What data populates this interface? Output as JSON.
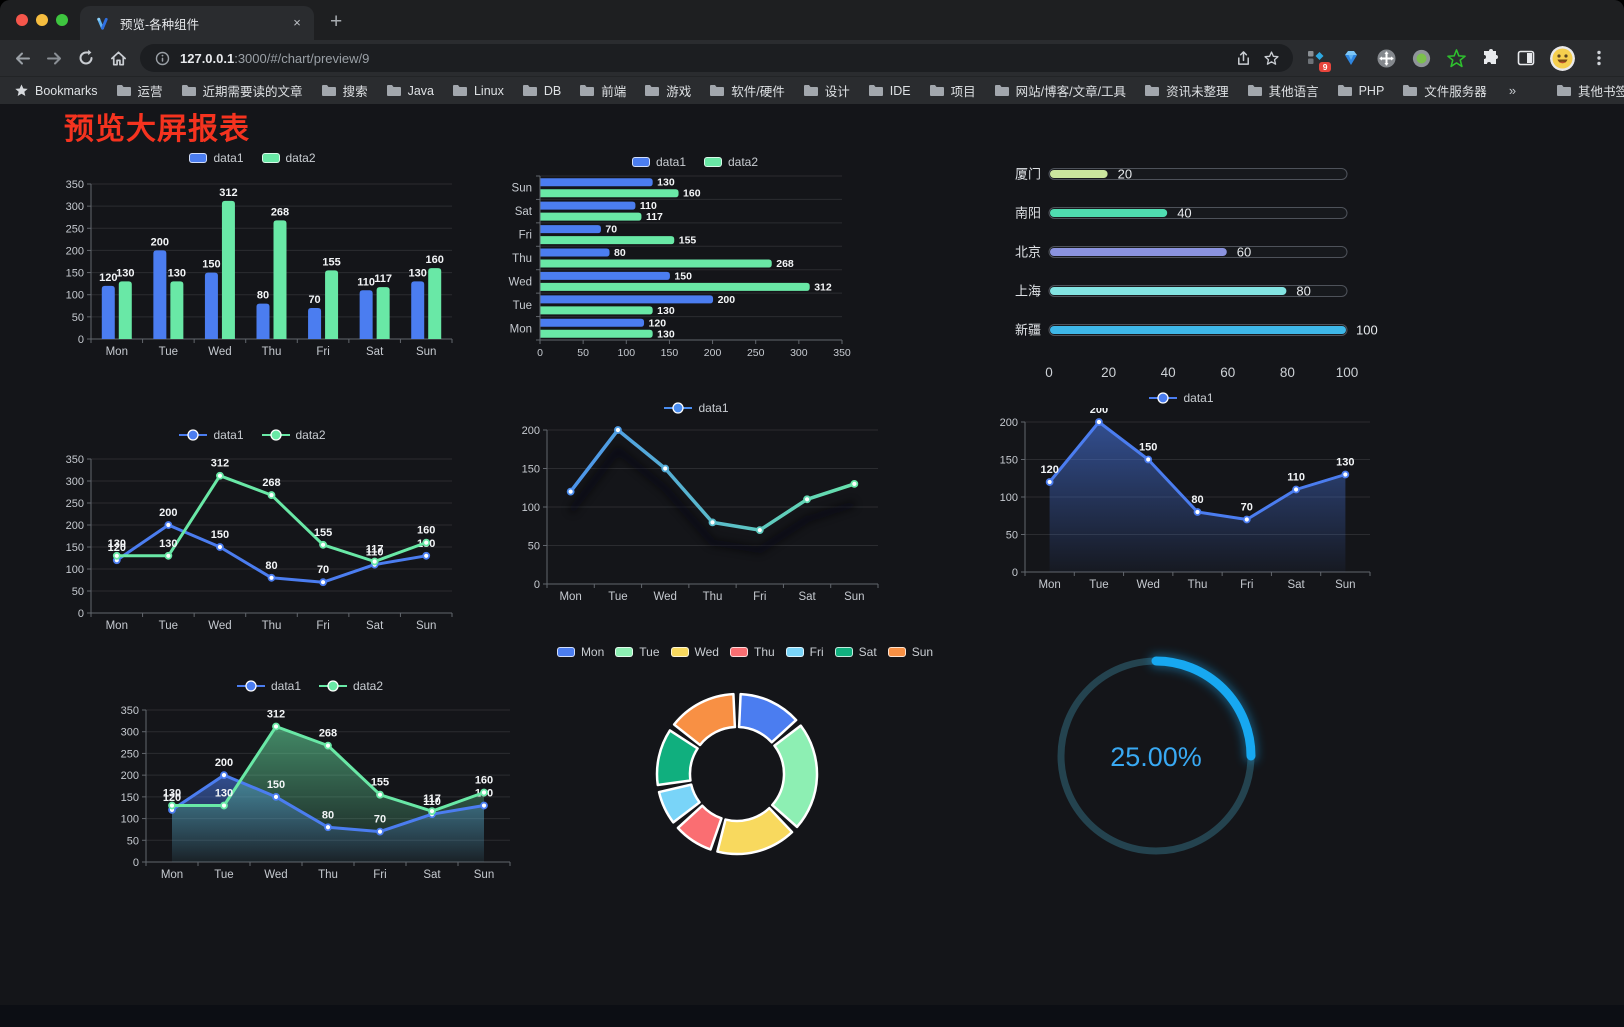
{
  "browser": {
    "tab": {
      "title": "预览-各种组件",
      "close_glyph": "×",
      "new_glyph": "+"
    },
    "url": {
      "host_bold": "127.0.0.1",
      "rest": ":3000/#/chart/preview/9"
    },
    "extension_badge": "9",
    "bookmarks_label": "Bookmarks",
    "bookmarks": [
      "运营",
      "近期需要读的文章",
      "搜索",
      "Java",
      "Linux",
      "DB",
      "前端",
      "游戏",
      "软件/硬件",
      "设计",
      "IDE",
      "项目",
      "网站/博客/文章/工具",
      "资讯未整理",
      "其他语言",
      "PHP",
      "文件服务器"
    ],
    "bookmarks_overflow": "»",
    "other_bookmarks": "其他书签"
  },
  "page": {
    "title": "预览大屏报表",
    "title_color": "#F5331F"
  },
  "chart_data": [
    {
      "type": "bar",
      "legend": "top",
      "value_labels": true,
      "categories": [
        "Mon",
        "Tue",
        "Wed",
        "Thu",
        "Fri",
        "Sat",
        "Sun"
      ],
      "series": [
        {
          "name": "data1",
          "color": "#4B7DF0",
          "values": [
            120,
            200,
            150,
            80,
            70,
            110,
            130
          ]
        },
        {
          "name": "data2",
          "color": "#69E8A6",
          "values": [
            130,
            130,
            312,
            268,
            155,
            117,
            160
          ]
        }
      ],
      "ylim": [
        0,
        350
      ],
      "yticks": [
        0,
        50,
        100,
        150,
        200,
        250,
        300,
        350
      ]
    },
    {
      "type": "hbar",
      "legend": "top",
      "value_labels": true,
      "categories": [
        "Mon",
        "Tue",
        "Wed",
        "Thu",
        "Fri",
        "Sat",
        "Sun"
      ],
      "display_order_top_to_bottom": [
        "Sun",
        "Sat",
        "Fri",
        "Thu",
        "Wed",
        "Tue",
        "Mon"
      ],
      "series": [
        {
          "name": "data1",
          "color": "#4B7DF0",
          "values": [
            120,
            200,
            150,
            80,
            70,
            110,
            130
          ]
        },
        {
          "name": "data2",
          "color": "#69E8A6",
          "values": [
            130,
            130,
            312,
            268,
            155,
            117,
            160
          ]
        }
      ],
      "xlim": [
        0,
        350
      ],
      "xticks": [
        0,
        50,
        100,
        150,
        200,
        250,
        300,
        350
      ]
    },
    {
      "type": "capsule-bar",
      "value_labels": true,
      "items": [
        {
          "label": "厦门",
          "value": 20,
          "color": "#CBE69E"
        },
        {
          "label": "南阳",
          "value": 40,
          "color": "#4FDCB0"
        },
        {
          "label": "北京",
          "value": 60,
          "color": "#8B93DF"
        },
        {
          "label": "上海",
          "value": 80,
          "color": "#83E4E2"
        },
        {
          "label": "新疆",
          "value": 100,
          "color": "#3EB7E8"
        }
      ],
      "xlim": [
        0,
        100
      ],
      "xticks": [
        0,
        20,
        40,
        60,
        80,
        100
      ]
    },
    {
      "type": "line",
      "legend": "top",
      "value_labels": true,
      "categories": [
        "Mon",
        "Tue",
        "Wed",
        "Thu",
        "Fri",
        "Sat",
        "Sun"
      ],
      "series": [
        {
          "name": "data1",
          "color": "#4B7DF0",
          "values": [
            120,
            200,
            150,
            80,
            70,
            110,
            130
          ]
        },
        {
          "name": "data2",
          "color": "#69E8A6",
          "values": [
            130,
            130,
            312,
            268,
            155,
            117,
            160
          ]
        }
      ],
      "ylim": [
        0,
        350
      ],
      "yticks": [
        0,
        50,
        100,
        150,
        200,
        250,
        300,
        350
      ]
    },
    {
      "type": "line-gradient",
      "legend": "top",
      "value_labels": false,
      "categories": [
        "Mon",
        "Tue",
        "Wed",
        "Thu",
        "Fri",
        "Sat",
        "Sun"
      ],
      "series": [
        {
          "name": "data1",
          "values": [
            120,
            200,
            150,
            80,
            70,
            110,
            130
          ]
        }
      ],
      "gradient": [
        "#4A8DF0",
        "#69E8A6"
      ],
      "ylim": [
        0,
        200
      ],
      "yticks": [
        0,
        50,
        100,
        150,
        200
      ]
    },
    {
      "type": "area",
      "legend": "top",
      "value_labels": true,
      "categories": [
        "Mon",
        "Tue",
        "Wed",
        "Thu",
        "Fri",
        "Sat",
        "Sun"
      ],
      "series": [
        {
          "name": "data1",
          "color": "#4B7DF0",
          "values": [
            120,
            200,
            150,
            80,
            70,
            110,
            130
          ]
        }
      ],
      "ylim": [
        0,
        200
      ],
      "yticks": [
        0,
        50,
        100,
        150,
        200
      ]
    },
    {
      "type": "area",
      "legend": "top",
      "value_labels": true,
      "categories": [
        "Mon",
        "Tue",
        "Wed",
        "Thu",
        "Fri",
        "Sat",
        "Sun"
      ],
      "series": [
        {
          "name": "data1",
          "color": "#4B7DF0",
          "values": [
            120,
            200,
            150,
            80,
            70,
            110,
            130
          ]
        },
        {
          "name": "data2",
          "color": "#69E8A6",
          "values": [
            130,
            130,
            312,
            268,
            155,
            117,
            160
          ]
        }
      ],
      "ylim": [
        0,
        350
      ],
      "yticks": [
        0,
        50,
        100,
        150,
        200,
        250,
        300,
        350
      ]
    },
    {
      "type": "pie",
      "legend": "top",
      "labels": [
        "Mon",
        "Tue",
        "Wed",
        "Thu",
        "Fri",
        "Sat",
        "Sun"
      ],
      "values": [
        120,
        200,
        150,
        80,
        70,
        110,
        130
      ],
      "colors": [
        "#4B7DF0",
        "#8DEFB3",
        "#F8D95E",
        "#FA6E72",
        "#79D4F8",
        "#10AF7E",
        "#F89044"
      ],
      "inner_radius_ratio": 0.59
    },
    {
      "type": "gauge",
      "percent": 25,
      "label": "25.00%",
      "track_color": "#24434F",
      "arc_color": "#17A8F1",
      "text_color": "#39A9F3"
    }
  ]
}
